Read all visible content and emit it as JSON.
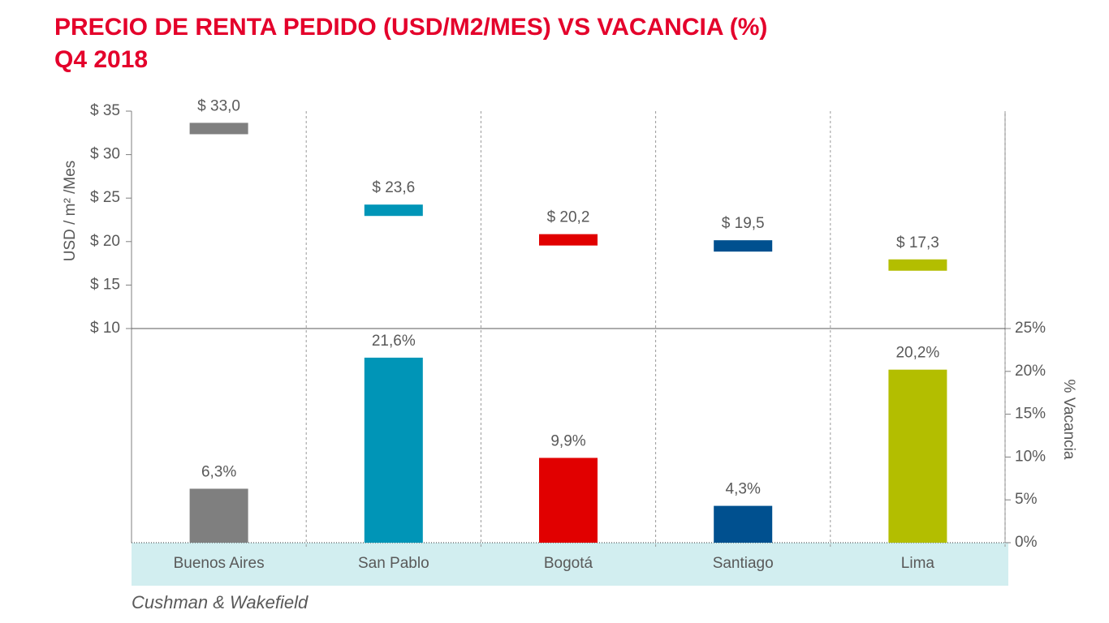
{
  "chart_data": {
    "type": "bar",
    "title": "PRECIO DE RENTA PEDIDO (USD/M2/MES) VS VACANCIA (%)",
    "subtitle": "Q4 2018",
    "ylabel": "USD / m² /Mes",
    "y2label": "% Vacancia",
    "source": "Cushman & Wakefield",
    "categories": [
      "Buenos Aires",
      "San Pablo",
      "Bogotá",
      "Santiago",
      "Lima"
    ],
    "colors": [
      "#7f7f7f",
      "#0095b7",
      "#e10000",
      "#00508f",
      "#b3be00"
    ],
    "series": [
      {
        "mark": "floating",
        "values": [
          33.0,
          23.6,
          20.2,
          19.5,
          17.3
        ],
        "value_labels": [
          "$ 33,0",
          "$ 23,6",
          "$ 20,2",
          "$ 19,5",
          "$ 17,3"
        ]
      },
      {
        "axis": "y2",
        "values": [
          6.3,
          21.6,
          9.9,
          4.3,
          20.2
        ],
        "value_labels": [
          "6,3%",
          "21,6%",
          "9,9%",
          "4,3%",
          "20,2%"
        ]
      }
    ],
    "ylim": [
      10,
      35
    ],
    "yticks": [
      {
        "value": 10,
        "label": "$ 10"
      },
      {
        "value": 15,
        "label": "$ 15"
      },
      {
        "value": 20,
        "label": "$ 20"
      },
      {
        "value": 25,
        "label": "$ 25"
      },
      {
        "value": 30,
        "label": "$ 30"
      },
      {
        "value": 35,
        "label": "$ 35"
      }
    ],
    "y2lim": [
      0,
      25
    ],
    "y2ticks": [
      {
        "value": 0,
        "label": "0%"
      },
      {
        "value": 5,
        "label": "5%"
      },
      {
        "value": 10,
        "label": "10%"
      },
      {
        "value": 15,
        "label": "15%"
      },
      {
        "value": 20,
        "label": "20%"
      },
      {
        "value": 25,
        "label": "25%"
      }
    ]
  }
}
